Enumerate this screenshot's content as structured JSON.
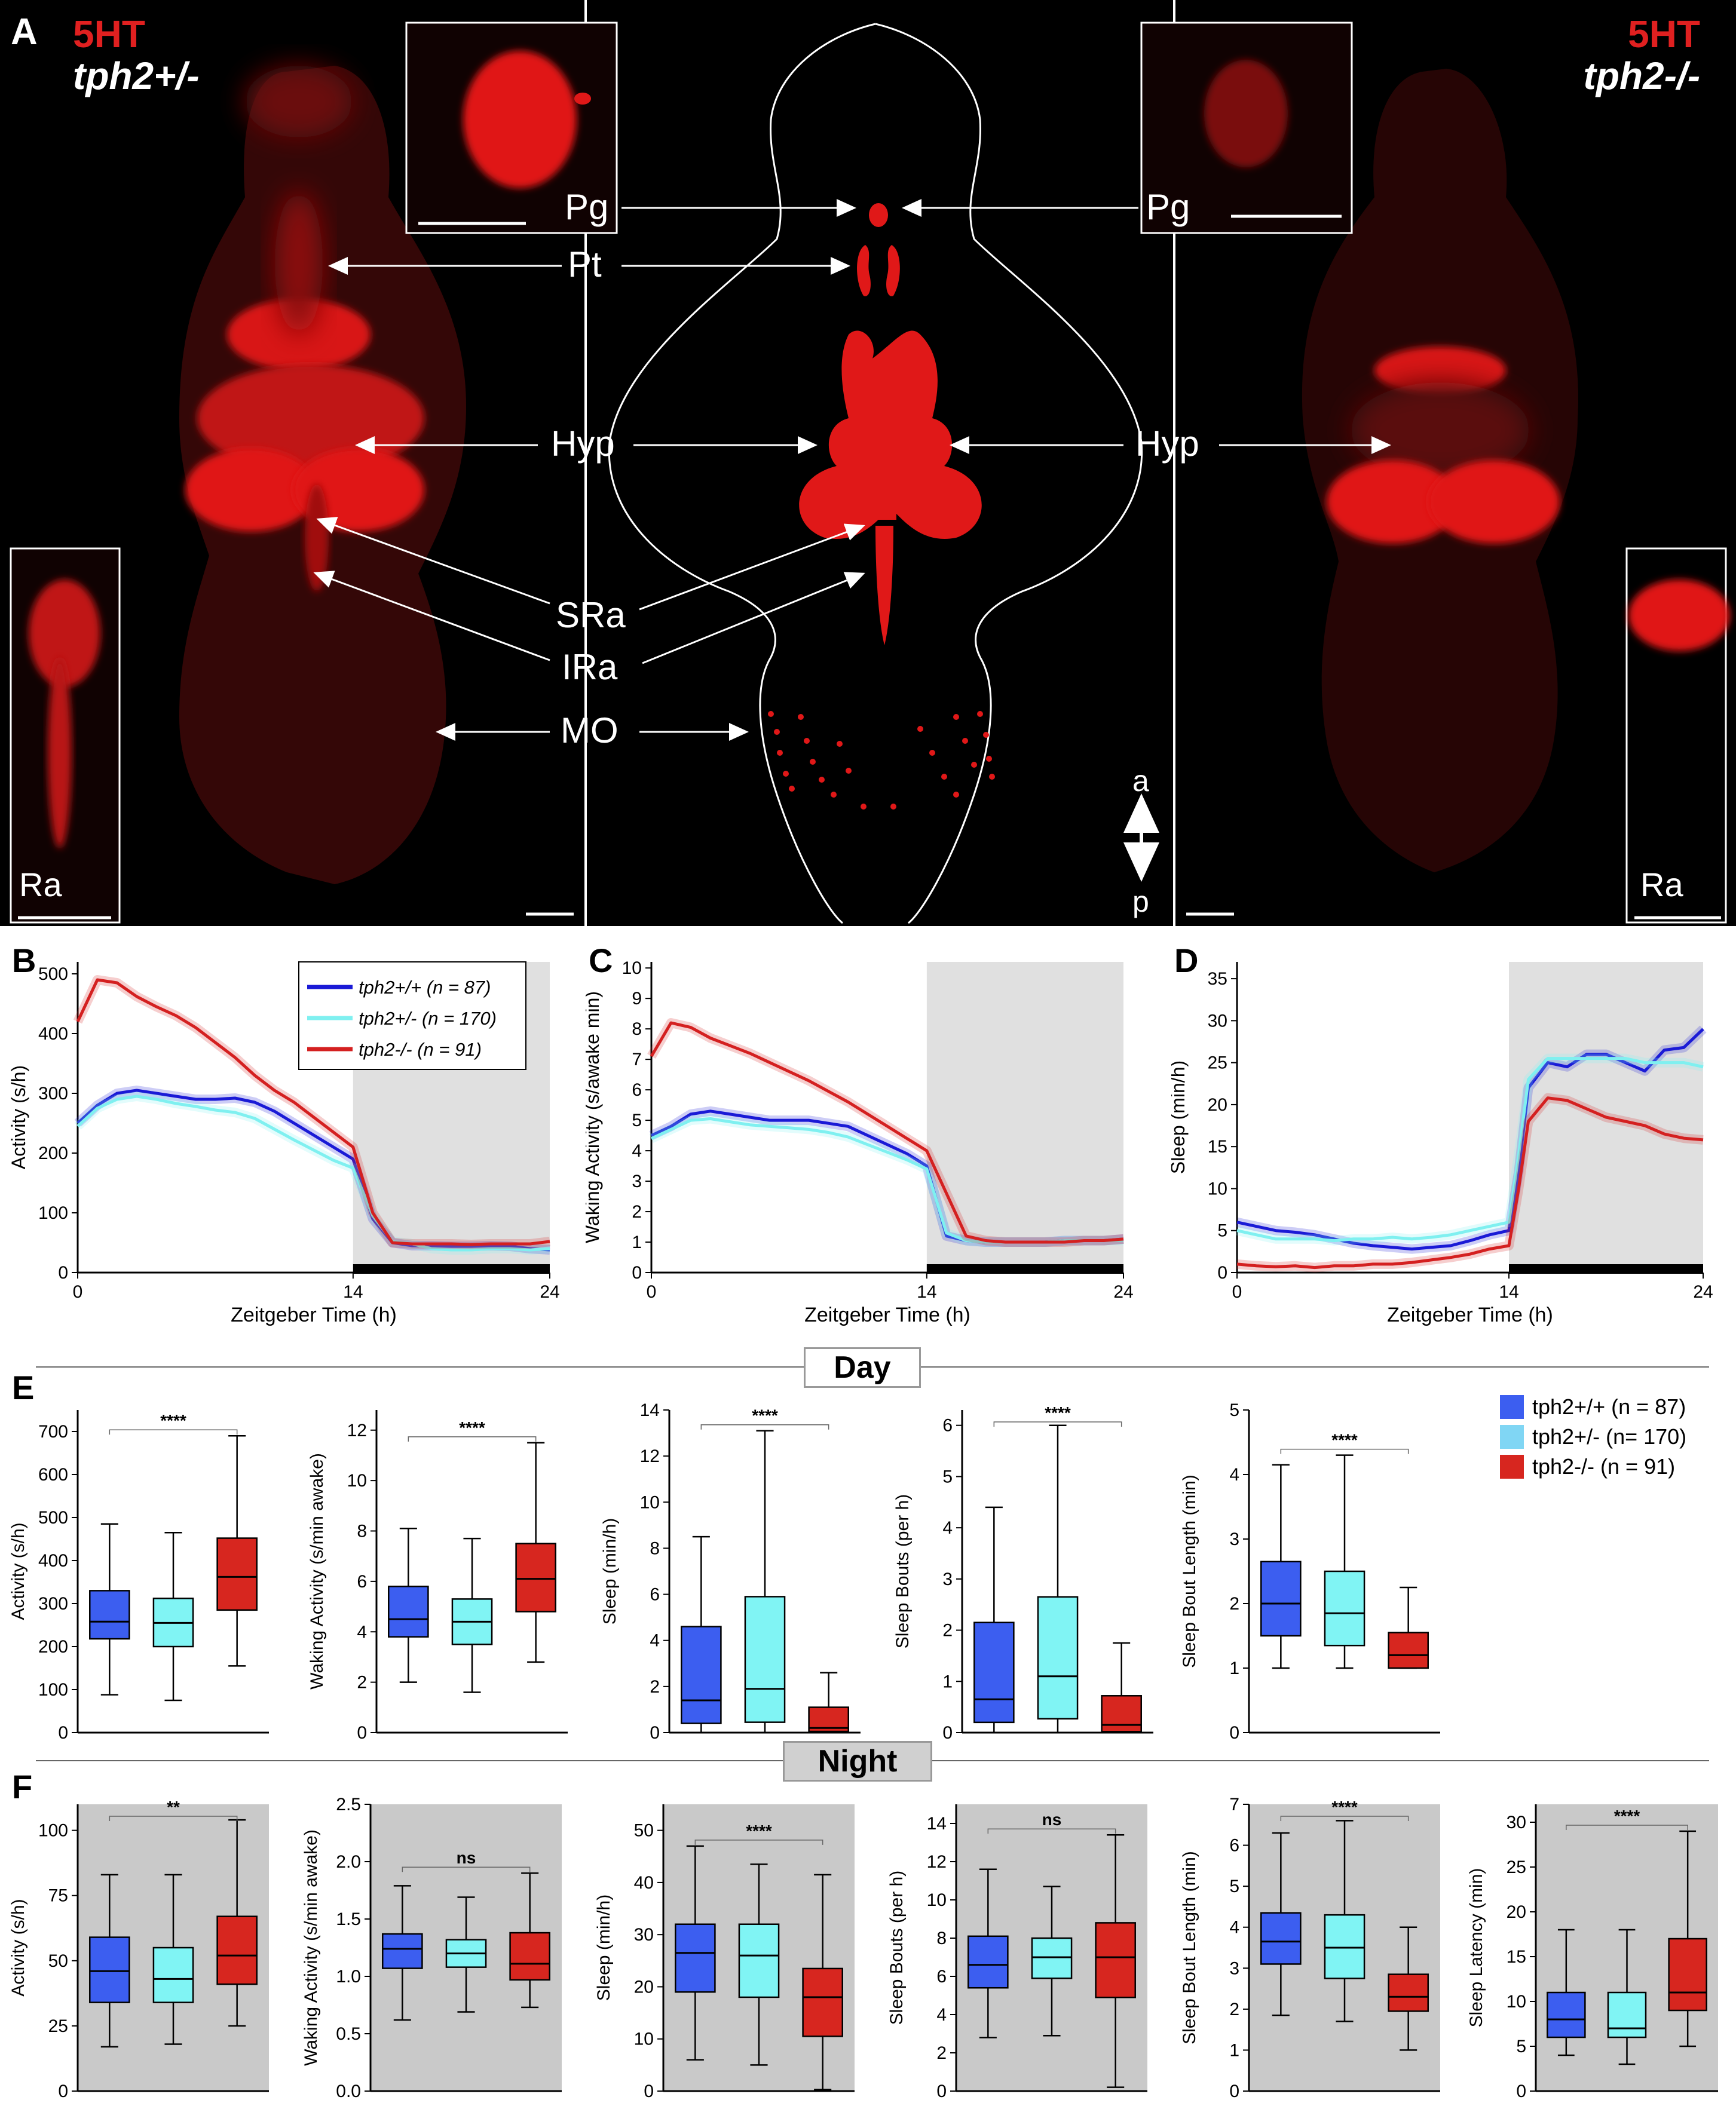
{
  "panel_letters": {
    "A": "A",
    "B": "B",
    "C": "C",
    "D": "D",
    "E": "E",
    "F": "F"
  },
  "panel_a": {
    "left_title_1": "5HT",
    "left_title_2": "tph2+/-",
    "right_title_1": "5HT",
    "right_title_2": "tph2-/-",
    "labels": {
      "pg": "Pg",
      "pt": "Pt",
      "hyp": "Hyp",
      "sra": "SRa",
      "ira": "IRa",
      "mo": "MO",
      "ra": "Ra",
      "a": "a",
      "p": "p"
    }
  },
  "colors": {
    "wt": "#1a1ad6",
    "het": "#7ff0f0",
    "hom": "#d42020",
    "box_wt": "#3c5ef0",
    "box_het": "#80f4f4",
    "box_hom": "#d7261f",
    "night_bg": "#c9c9c9",
    "red_signal": "#e01818"
  },
  "section_labels": {
    "day": "Day",
    "night": "Night"
  },
  "legend_box": [
    {
      "label": "tph2+/+ (n = 87)"
    },
    {
      "label": "tph2+/- (n= 170)"
    },
    {
      "label": "tph2-/- (n = 91)"
    }
  ],
  "chart_data": [
    {
      "id": "B",
      "type": "line",
      "xlabel": "Zeitgeber Time (h)",
      "ylabel": "Activity (s/h)",
      "xlim": [
        0,
        24
      ],
      "ylim": [
        0,
        520
      ],
      "xticks": [
        0,
        14,
        24
      ],
      "yticks": [
        0,
        100,
        200,
        300,
        400,
        500
      ],
      "night_shading": [
        14,
        24
      ],
      "legend": [
        "tph2+/+ (n = 87)",
        "tph2+/- (n = 170)",
        "tph2-/- (n = 91)"
      ],
      "series": [
        {
          "name": "tph2+/+ (n = 87)",
          "x": [
            0,
            1,
            2,
            3,
            4,
            5,
            6,
            7,
            8,
            9,
            10,
            11,
            12,
            13,
            14,
            15,
            16,
            17,
            18,
            19,
            20,
            21,
            22,
            23,
            24
          ],
          "y": [
            250,
            280,
            300,
            305,
            300,
            295,
            290,
            290,
            292,
            285,
            270,
            250,
            230,
            210,
            190,
            90,
            50,
            45,
            45,
            44,
            44,
            45,
            44,
            40,
            38
          ]
        },
        {
          "name": "tph2+/- (n = 170)",
          "x": [
            0,
            1,
            2,
            3,
            4,
            5,
            6,
            7,
            8,
            9,
            10,
            11,
            12,
            13,
            14,
            15,
            16,
            17,
            18,
            19,
            20,
            21,
            22,
            23,
            24
          ],
          "y": [
            245,
            275,
            290,
            295,
            290,
            283,
            278,
            272,
            268,
            258,
            240,
            222,
            205,
            188,
            175,
            95,
            52,
            48,
            40,
            38,
            38,
            40,
            40,
            38,
            40
          ]
        },
        {
          "name": "tph2-/- (n = 91)",
          "x": [
            0,
            1,
            2,
            3,
            4,
            5,
            6,
            7,
            8,
            9,
            10,
            11,
            12,
            13,
            14,
            15,
            16,
            17,
            18,
            19,
            20,
            21,
            22,
            23,
            24
          ],
          "y": [
            420,
            490,
            485,
            462,
            445,
            430,
            410,
            385,
            360,
            330,
            305,
            285,
            260,
            235,
            210,
            100,
            50,
            48,
            48,
            48,
            47,
            48,
            48,
            48,
            52
          ]
        }
      ]
    },
    {
      "id": "C",
      "type": "line",
      "xlabel": "Zeitgeber Time (h)",
      "ylabel": "Waking Activity (s/awake min)",
      "xlim": [
        0,
        24
      ],
      "ylim": [
        0,
        10.2
      ],
      "xticks": [
        0,
        14,
        24
      ],
      "yticks": [
        0,
        1,
        2,
        3,
        4,
        5,
        6,
        7,
        8,
        9,
        10
      ],
      "night_shading": [
        14,
        24
      ],
      "series": [
        {
          "name": "tph2+/+ (n = 87)",
          "x": [
            0,
            1,
            2,
            3,
            4,
            5,
            6,
            7,
            8,
            9,
            10,
            11,
            12,
            13,
            14,
            15,
            16,
            17,
            18,
            19,
            20,
            21,
            22,
            23,
            24
          ],
          "y": [
            4.5,
            4.8,
            5.2,
            5.3,
            5.2,
            5.1,
            5.0,
            5.0,
            5.0,
            4.9,
            4.8,
            4.5,
            4.2,
            3.9,
            3.5,
            1.2,
            1.05,
            1.0,
            1.0,
            1.0,
            1.0,
            1.05,
            1.05,
            1.05,
            1.1
          ]
        },
        {
          "name": "tph2+/- (n = 170)",
          "x": [
            0,
            1,
            2,
            3,
            4,
            5,
            6,
            7,
            8,
            9,
            10,
            11,
            12,
            13,
            14,
            15,
            16,
            17,
            18,
            19,
            20,
            21,
            22,
            23,
            24
          ],
          "y": [
            4.4,
            4.7,
            5.0,
            5.05,
            4.95,
            4.85,
            4.8,
            4.75,
            4.7,
            4.6,
            4.45,
            4.2,
            3.95,
            3.7,
            3.4,
            1.3,
            1.05,
            1.0,
            1.0,
            1.0,
            1.0,
            1.05,
            1.05,
            1.05,
            1.05
          ]
        },
        {
          "name": "tph2-/- (n = 91)",
          "x": [
            0,
            1,
            2,
            3,
            4,
            5,
            6,
            7,
            8,
            9,
            10,
            11,
            12,
            13,
            14,
            15,
            16,
            17,
            18,
            19,
            20,
            21,
            22,
            23,
            24
          ],
          "y": [
            7.1,
            8.2,
            8.05,
            7.7,
            7.45,
            7.2,
            6.9,
            6.6,
            6.3,
            5.95,
            5.6,
            5.2,
            4.8,
            4.4,
            4.0,
            2.6,
            1.2,
            1.05,
            1.0,
            1.0,
            1.0,
            1.0,
            1.05,
            1.05,
            1.1
          ]
        }
      ]
    },
    {
      "id": "D",
      "type": "line",
      "xlabel": "Zeitgeber Time (h)",
      "ylabel": "Sleep (min/h)",
      "xlim": [
        0,
        24
      ],
      "ylim": [
        0,
        37
      ],
      "xticks": [
        0,
        14,
        24
      ],
      "yticks": [
        0,
        5,
        10,
        15,
        20,
        25,
        30,
        35
      ],
      "night_shading": [
        14,
        24
      ],
      "series": [
        {
          "name": "tph2+/+ (n = 87)",
          "x": [
            0,
            1,
            2,
            3,
            4,
            5,
            6,
            7,
            8,
            9,
            10,
            11,
            12,
            13,
            14,
            14.5,
            15,
            16,
            17,
            18,
            19,
            20,
            21,
            22,
            23,
            24
          ],
          "y": [
            6.0,
            5.5,
            5.0,
            4.8,
            4.5,
            4.0,
            3.5,
            3.2,
            3.0,
            2.8,
            3.0,
            3.2,
            3.8,
            4.5,
            5.0,
            12,
            22,
            25,
            24.5,
            26,
            26,
            25,
            24,
            26.5,
            26.8,
            29
          ]
        },
        {
          "name": "tph2+/- (n = 170)",
          "x": [
            0,
            1,
            2,
            3,
            4,
            5,
            6,
            7,
            8,
            9,
            10,
            11,
            12,
            13,
            14,
            14.5,
            15,
            16,
            17,
            18,
            19,
            20,
            21,
            22,
            23,
            24
          ],
          "y": [
            5.0,
            4.5,
            4.0,
            4.0,
            4.0,
            3.8,
            4.0,
            4.0,
            4.2,
            4.0,
            4.2,
            4.5,
            5.0,
            5.5,
            6.0,
            14,
            23,
            25.5,
            25.5,
            25.5,
            25.5,
            25.5,
            25,
            25,
            25,
            24.5
          ]
        },
        {
          "name": "tph2-/- (n = 91)",
          "x": [
            0,
            1,
            2,
            3,
            4,
            5,
            6,
            7,
            8,
            9,
            10,
            11,
            12,
            13,
            14,
            14.5,
            15,
            16,
            17,
            18,
            19,
            20,
            21,
            22,
            23,
            24
          ],
          "y": [
            1.0,
            0.8,
            0.7,
            0.8,
            0.6,
            0.8,
            0.8,
            1.0,
            1.0,
            1.2,
            1.5,
            1.8,
            2.2,
            2.8,
            3.2,
            10,
            18,
            20.8,
            20.5,
            19.5,
            18.5,
            18,
            17.5,
            16.5,
            16,
            15.8
          ]
        }
      ]
    },
    {
      "id": "E1",
      "type": "box",
      "ylabel": "Activity (s/h)",
      "ylim": [
        0,
        750
      ],
      "yticks": [
        0,
        100,
        200,
        300,
        400,
        500,
        600,
        700
      ],
      "sig": "****",
      "sig_span": [
        0,
        2
      ],
      "night": false,
      "boxes": [
        {
          "min": 88,
          "q1": 218,
          "median": 258,
          "q3": 330,
          "max": 485
        },
        {
          "min": 75,
          "q1": 200,
          "median": 255,
          "q3": 312,
          "max": 465
        },
        {
          "min": 155,
          "q1": 285,
          "median": 362,
          "q3": 452,
          "max": 690
        }
      ]
    },
    {
      "id": "E2",
      "type": "box",
      "ylabel": "Waking Activity (s/min awake)",
      "ylim": [
        0,
        12.8
      ],
      "yticks": [
        0,
        2,
        4,
        6,
        8,
        10,
        12
      ],
      "sig": "****",
      "sig_span": [
        0,
        2
      ],
      "night": false,
      "boxes": [
        {
          "min": 2.0,
          "q1": 3.8,
          "median": 4.5,
          "q3": 5.8,
          "max": 8.1
        },
        {
          "min": 1.6,
          "q1": 3.5,
          "median": 4.4,
          "q3": 5.3,
          "max": 7.7
        },
        {
          "min": 2.8,
          "q1": 4.8,
          "median": 6.1,
          "q3": 7.5,
          "max": 11.5
        }
      ]
    },
    {
      "id": "E3",
      "type": "box",
      "ylabel": "Sleep (min/h)",
      "ylim": [
        0,
        14
      ],
      "yticks": [
        0,
        2,
        4,
        6,
        8,
        10,
        12,
        14
      ],
      "sig": "****",
      "sig_span": [
        0,
        2
      ],
      "night": false,
      "boxes": [
        {
          "min": 0.0,
          "q1": 0.4,
          "median": 1.4,
          "q3": 4.6,
          "max": 8.5
        },
        {
          "min": 0.0,
          "q1": 0.45,
          "median": 1.9,
          "q3": 5.9,
          "max": 13.1
        },
        {
          "min": 0.0,
          "q1": 0.05,
          "median": 0.2,
          "q3": 1.1,
          "max": 2.6
        }
      ]
    },
    {
      "id": "E4",
      "type": "box",
      "ylabel": "Sleep Bouts (per h)",
      "ylim": [
        0,
        6.3
      ],
      "yticks": [
        0,
        1,
        2,
        3,
        4,
        5,
        6
      ],
      "sig": "****",
      "sig_span": [
        0,
        2
      ],
      "night": false,
      "boxes": [
        {
          "min": 0.0,
          "q1": 0.2,
          "median": 0.65,
          "q3": 2.15,
          "max": 4.4
        },
        {
          "min": 0.0,
          "q1": 0.27,
          "median": 1.1,
          "q3": 2.65,
          "max": 6.0
        },
        {
          "min": 0.0,
          "q1": 0.02,
          "median": 0.15,
          "q3": 0.72,
          "max": 1.75
        }
      ]
    },
    {
      "id": "E5",
      "type": "box",
      "ylabel": "Sleep Bout Length (min)",
      "ylim": [
        0,
        5
      ],
      "yticks": [
        0,
        1,
        2,
        3,
        4,
        5
      ],
      "sig": "****",
      "sig_span": [
        0,
        2
      ],
      "night": false,
      "boxes": [
        {
          "min": 1.0,
          "q1": 1.5,
          "median": 2.0,
          "q3": 2.65,
          "max": 4.15
        },
        {
          "min": 1.0,
          "q1": 1.35,
          "median": 1.85,
          "q3": 2.5,
          "max": 4.3
        },
        {
          "min": 1.0,
          "q1": 1.0,
          "median": 1.2,
          "q3": 1.55,
          "max": 2.25
        }
      ]
    },
    {
      "id": "F1",
      "type": "box",
      "ylabel": "Activity (s/h)",
      "ylim": [
        0,
        110
      ],
      "yticks": [
        0,
        25,
        50,
        75,
        100
      ],
      "sig": "**",
      "sig_span": [
        0,
        2
      ],
      "night": true,
      "boxes": [
        {
          "min": 17,
          "q1": 34,
          "median": 46,
          "q3": 59,
          "max": 83
        },
        {
          "min": 18,
          "q1": 34,
          "median": 43,
          "q3": 55,
          "max": 83
        },
        {
          "min": 25,
          "q1": 41,
          "median": 52,
          "q3": 67,
          "max": 104
        }
      ]
    },
    {
      "id": "F2",
      "type": "box",
      "ylabel": "Waking Activity (s/min awake)",
      "ylim": [
        0,
        2.5
      ],
      "yticks": [
        0.0,
        0.5,
        1.0,
        1.5,
        2.0,
        2.5
      ],
      "sig": "ns",
      "sig_span": [
        0,
        2
      ],
      "night": true,
      "boxes": [
        {
          "min": 0.62,
          "q1": 1.07,
          "median": 1.24,
          "q3": 1.37,
          "max": 1.79
        },
        {
          "min": 0.69,
          "q1": 1.08,
          "median": 1.2,
          "q3": 1.32,
          "max": 1.69
        },
        {
          "min": 0.73,
          "q1": 0.97,
          "median": 1.11,
          "q3": 1.38,
          "max": 1.9
        }
      ]
    },
    {
      "id": "F3",
      "type": "box",
      "ylabel": "Sleep (min/h)",
      "ylim": [
        0,
        55
      ],
      "yticks": [
        0,
        10,
        20,
        30,
        40,
        50
      ],
      "sig": "****",
      "sig_span": [
        0,
        2
      ],
      "night": true,
      "boxes": [
        {
          "min": 6,
          "q1": 19,
          "median": 26.5,
          "q3": 32,
          "max": 47
        },
        {
          "min": 5,
          "q1": 18,
          "median": 26,
          "q3": 32,
          "max": 43.5
        },
        {
          "min": 0.3,
          "q1": 10.5,
          "median": 18,
          "q3": 23.5,
          "max": 41.5
        }
      ]
    },
    {
      "id": "F4",
      "type": "box",
      "ylabel": "Sleep Bouts (per h)",
      "ylim": [
        0,
        15
      ],
      "yticks": [
        0,
        2,
        4,
        6,
        8,
        10,
        12,
        14
      ],
      "sig": "ns",
      "sig_span": [
        0,
        2
      ],
      "night": true,
      "boxes": [
        {
          "min": 2.8,
          "q1": 5.4,
          "median": 6.6,
          "q3": 8.1,
          "max": 11.6
        },
        {
          "min": 2.9,
          "q1": 5.9,
          "median": 7.0,
          "q3": 8.0,
          "max": 10.7
        },
        {
          "min": 0.2,
          "q1": 4.9,
          "median": 7.0,
          "q3": 8.8,
          "max": 13.4
        }
      ]
    },
    {
      "id": "F5",
      "type": "box",
      "ylabel": "Sleep Bout Length (min)",
      "ylim": [
        0,
        7
      ],
      "yticks": [
        0,
        1,
        2,
        3,
        4,
        5,
        6,
        7
      ],
      "sig": "****",
      "sig_span": [
        0,
        2
      ],
      "night": true,
      "boxes": [
        {
          "min": 1.85,
          "q1": 3.1,
          "median": 3.65,
          "q3": 4.35,
          "max": 6.3
        },
        {
          "min": 1.7,
          "q1": 2.75,
          "median": 3.5,
          "q3": 4.3,
          "max": 6.6
        },
        {
          "min": 1.0,
          "q1": 1.95,
          "median": 2.3,
          "q3": 2.85,
          "max": 4.0
        }
      ]
    },
    {
      "id": "F6",
      "type": "box",
      "ylabel": "Sleep Latency (min)",
      "ylim": [
        0,
        32
      ],
      "yticks": [
        0,
        5,
        10,
        15,
        20,
        25,
        30
      ],
      "sig": "****",
      "sig_span": [
        0,
        2
      ],
      "night": true,
      "boxes": [
        {
          "min": 4,
          "q1": 6,
          "median": 8,
          "q3": 11,
          "max": 18
        },
        {
          "min": 3,
          "q1": 6,
          "median": 7,
          "q3": 11,
          "max": 18
        },
        {
          "min": 5,
          "q1": 9,
          "median": 11,
          "q3": 17,
          "max": 29
        }
      ]
    }
  ]
}
